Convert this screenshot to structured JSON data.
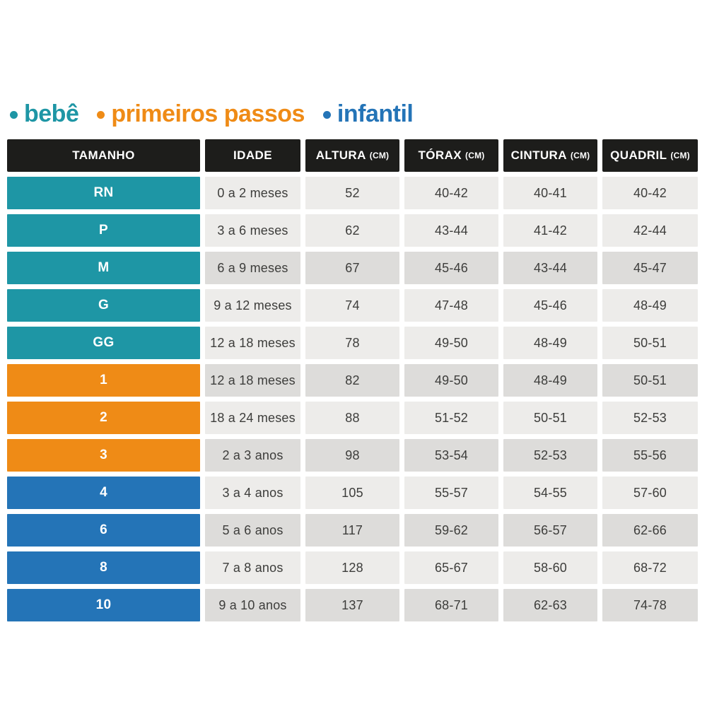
{
  "page": {
    "background": "#ffffff"
  },
  "legend": {
    "items": [
      {
        "label": "bebê",
        "color": "#1e96a5"
      },
      {
        "label": "primeiros passos",
        "color": "#ef8b16"
      },
      {
        "label": "infantil",
        "color": "#2474b7"
      }
    ]
  },
  "table": {
    "header": {
      "bg": "#1d1d1b",
      "text_color": "#ffffff",
      "columns": [
        {
          "label": "TAMANHO",
          "unit": ""
        },
        {
          "label": "IDADE",
          "unit": ""
        },
        {
          "label": "ALTURA",
          "unit": "(CM)"
        },
        {
          "label": "TÓRAX",
          "unit": "(CM)"
        },
        {
          "label": "CINTURA",
          "unit": "(CM)"
        },
        {
          "label": "QUADRIL",
          "unit": "(CM)"
        }
      ]
    },
    "group_colors": {
      "bebe": "#1e96a5",
      "primeiros_passos": "#ef8b16",
      "infantil": "#2474b7"
    },
    "row_shades": {
      "light": "#edecea",
      "dark": "#dddcda"
    },
    "rows": [
      {
        "tamanho": "RN",
        "group": "bebe",
        "idade": "0 a 2 meses",
        "altura": "52",
        "torax": "40-42",
        "cintura": "40-41",
        "quadril": "40-42",
        "shade": "light"
      },
      {
        "tamanho": "P",
        "group": "bebe",
        "idade": "3 a 6 meses",
        "altura": "62",
        "torax": "43-44",
        "cintura": "41-42",
        "quadril": "42-44",
        "shade": "light"
      },
      {
        "tamanho": "M",
        "group": "bebe",
        "idade": "6 a 9 meses",
        "altura": "67",
        "torax": "45-46",
        "cintura": "43-44",
        "quadril": "45-47",
        "shade": "dark"
      },
      {
        "tamanho": "G",
        "group": "bebe",
        "idade": "9 a 12 meses",
        "altura": "74",
        "torax": "47-48",
        "cintura": "45-46",
        "quadril": "48-49",
        "shade": "light"
      },
      {
        "tamanho": "GG",
        "group": "bebe",
        "idade": "12 a 18 meses",
        "altura": "78",
        "torax": "49-50",
        "cintura": "48-49",
        "quadril": "50-51",
        "shade": "light"
      },
      {
        "tamanho": "1",
        "group": "primeiros_passos",
        "idade": "12 a 18 meses",
        "altura": "82",
        "torax": "49-50",
        "cintura": "48-49",
        "quadril": "50-51",
        "shade": "dark"
      },
      {
        "tamanho": "2",
        "group": "primeiros_passos",
        "idade": "18 a 24 meses",
        "altura": "88",
        "torax": "51-52",
        "cintura": "50-51",
        "quadril": "52-53",
        "shade": "light"
      },
      {
        "tamanho": "3",
        "group": "primeiros_passos",
        "idade": "2 a 3 anos",
        "altura": "98",
        "torax": "53-54",
        "cintura": "52-53",
        "quadril": "55-56",
        "shade": "dark"
      },
      {
        "tamanho": "4",
        "group": "infantil",
        "idade": "3 a 4 anos",
        "altura": "105",
        "torax": "55-57",
        "cintura": "54-55",
        "quadril": "57-60",
        "shade": "light"
      },
      {
        "tamanho": "6",
        "group": "infantil",
        "idade": "5 a 6 anos",
        "altura": "117",
        "torax": "59-62",
        "cintura": "56-57",
        "quadril": "62-66",
        "shade": "dark"
      },
      {
        "tamanho": "8",
        "group": "infantil",
        "idade": "7 a 8 anos",
        "altura": "128",
        "torax": "65-67",
        "cintura": "58-60",
        "quadril": "68-72",
        "shade": "light"
      },
      {
        "tamanho": "10",
        "group": "infantil",
        "idade": "9 a 10 anos",
        "altura": "137",
        "torax": "68-71",
        "cintura": "62-63",
        "quadril": "74-78",
        "shade": "dark"
      }
    ]
  },
  "chart_data": {
    "type": "table",
    "title": "",
    "columns": [
      "TAMANHO",
      "IDADE",
      "ALTURA (CM)",
      "TÓRAX (CM)",
      "CINTURA (CM)",
      "QUADRIL (CM)"
    ],
    "rows": [
      [
        "RN",
        "0 a 2 meses",
        "52",
        "40-42",
        "40-41",
        "40-42"
      ],
      [
        "P",
        "3 a 6 meses",
        "62",
        "43-44",
        "41-42",
        "42-44"
      ],
      [
        "M",
        "6 a 9 meses",
        "67",
        "45-46",
        "43-44",
        "45-47"
      ],
      [
        "G",
        "9 a 12 meses",
        "74",
        "47-48",
        "45-46",
        "48-49"
      ],
      [
        "GG",
        "12 a 18 meses",
        "78",
        "49-50",
        "48-49",
        "50-51"
      ],
      [
        "1",
        "12 a 18 meses",
        "82",
        "49-50",
        "48-49",
        "50-51"
      ],
      [
        "2",
        "18 a 24 meses",
        "88",
        "51-52",
        "50-51",
        "52-53"
      ],
      [
        "3",
        "2 a 3 anos",
        "98",
        "53-54",
        "52-53",
        "55-56"
      ],
      [
        "4",
        "3 a 4 anos",
        "105",
        "55-57",
        "54-55",
        "57-60"
      ],
      [
        "6",
        "5 a 6 anos",
        "117",
        "59-62",
        "56-57",
        "62-66"
      ],
      [
        "8",
        "7 a 8 anos",
        "128",
        "65-67",
        "58-60",
        "68-72"
      ],
      [
        "10",
        "9 a 10 anos",
        "137",
        "68-71",
        "62-63",
        "74-78"
      ]
    ],
    "legend_entries": [
      "bebê",
      "primeiros passos",
      "infantil"
    ]
  }
}
